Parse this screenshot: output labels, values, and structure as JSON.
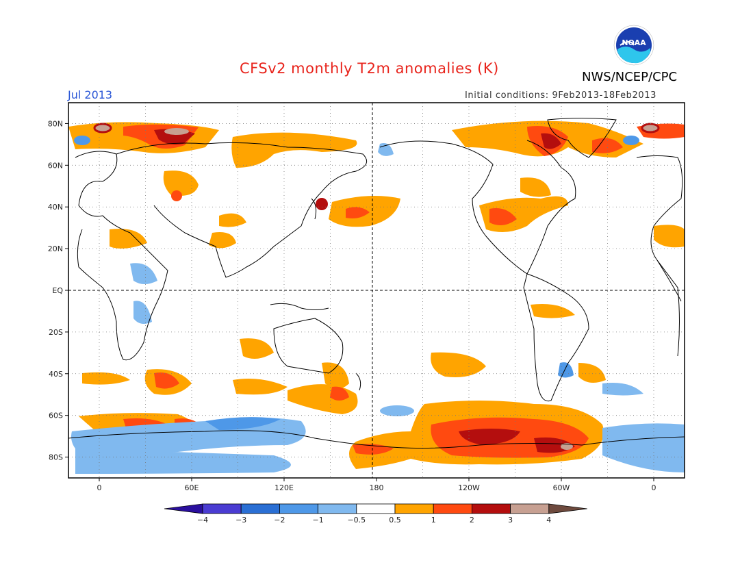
{
  "title": "CFSv2 monthly T2m anomalies (K)",
  "month_label": "Jul 2013",
  "initial_conditions": "Initial conditions: 9Feb2013-18Feb2013",
  "agency": "NWS/NCEP/CPC",
  "logo_text": "NOAA",
  "map": {
    "lat_ticks": [
      "80N",
      "60N",
      "40N",
      "20N",
      "EQ",
      "20S",
      "40S",
      "60S",
      "80S"
    ],
    "lon_ticks": [
      "0",
      "60E",
      "120E",
      "180",
      "120W",
      "60W",
      "0"
    ],
    "lat_values": [
      80,
      60,
      40,
      20,
      0,
      -20,
      -40,
      -60,
      -80
    ],
    "lon_values": [
      0,
      60,
      120,
      180,
      240,
      300,
      360
    ],
    "lon_range": [
      -20,
      380
    ],
    "lat_range": [
      -90,
      90
    ]
  },
  "colorbar": {
    "labels": [
      "−4",
      "−3",
      "−2",
      "−1",
      "−0.5",
      "0.5",
      "1",
      "2",
      "3",
      "4"
    ],
    "colors": [
      "#2a0f9e",
      "#4a3cd2",
      "#2a6fd4",
      "#4e98e8",
      "#80b9ef",
      "#ffffff",
      "#ffa400",
      "#ff4a10",
      "#b40e0e",
      "#c7a092",
      "#6e4a3e"
    ]
  }
}
